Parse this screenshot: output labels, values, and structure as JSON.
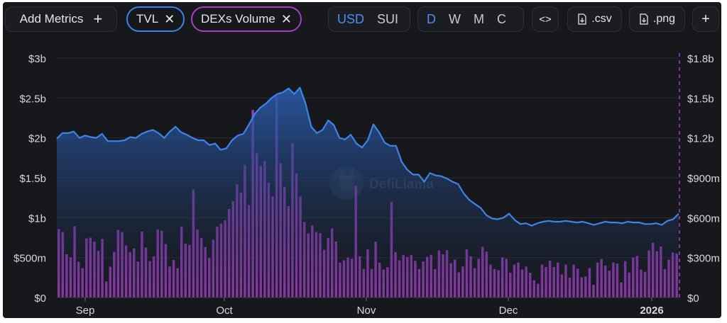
{
  "toolbar": {
    "add_metrics_label": "Add Metrics",
    "add_icon": "+",
    "metric_pills": [
      {
        "label": "TVL",
        "color": "#3d84e8"
      },
      {
        "label": "DEXs Volume",
        "color": "#a43fc2"
      }
    ],
    "remove_icon": "✕",
    "denominations": [
      "USD",
      "SUI"
    ],
    "active_denomination": "USD",
    "periods": [
      "D",
      "W",
      "M",
      "C"
    ],
    "active_period": "D",
    "embed_label": "<>",
    "csv_label": ".csv",
    "png_label": ".png",
    "more_label": "+"
  },
  "watermark": "DefiLlama",
  "chart_data": {
    "type": "bar",
    "x_tick_labels": [
      "Sep",
      "Oct",
      "Nov",
      "Dec",
      "2026"
    ],
    "left_axis_ticks": [
      "$0",
      "$500m",
      "$1b",
      "$1.5b",
      "$2b",
      "$2.5b",
      "$3b"
    ],
    "right_axis_ticks": [
      "$0",
      "$300m",
      "$600m",
      "$900m",
      "$1.2b",
      "$1.5b",
      "$1.8b"
    ],
    "left_ylim": [
      0,
      3000000000
    ],
    "right_ylim": [
      0,
      1800000000
    ],
    "legend_placement": "none",
    "grid": true,
    "series": [
      {
        "name": "TVL",
        "type": "area",
        "axis": "left",
        "color": "#3d84e8",
        "values": [
          1990000000,
          2060000000,
          2060000000,
          2080000000,
          2000000000,
          2030000000,
          2010000000,
          2000000000,
          2050000000,
          1960000000,
          1960000000,
          1960000000,
          1970000000,
          2010000000,
          2000000000,
          2050000000,
          2080000000,
          2100000000,
          2060000000,
          2000000000,
          2080000000,
          2140000000,
          2070000000,
          2040000000,
          2000000000,
          1970000000,
          1970000000,
          1910000000,
          1930000000,
          1850000000,
          1870000000,
          1970000000,
          2030000000,
          2050000000,
          2170000000,
          2300000000,
          2380000000,
          2430000000,
          2500000000,
          2550000000,
          2570000000,
          2620000000,
          2550000000,
          2630000000,
          2430000000,
          2140000000,
          2060000000,
          2100000000,
          2220000000,
          2160000000,
          2000000000,
          1980000000,
          2040000000,
          1930000000,
          1880000000,
          1970000000,
          2170000000,
          2070000000,
          1940000000,
          1900000000,
          1900000000,
          1700000000,
          1600000000,
          1540000000,
          1540000000,
          1450000000,
          1560000000,
          1530000000,
          1520000000,
          1490000000,
          1450000000,
          1420000000,
          1300000000,
          1220000000,
          1170000000,
          1120000000,
          1030000000,
          990000000,
          980000000,
          1000000000,
          1050000000,
          970000000,
          920000000,
          930000000,
          900000000,
          930000000,
          950000000,
          960000000,
          950000000,
          950000000,
          960000000,
          950000000,
          940000000,
          950000000,
          930000000,
          910000000,
          930000000,
          950000000,
          940000000,
          940000000,
          930000000,
          950000000,
          940000000,
          940000000,
          920000000,
          920000000,
          930000000,
          910000000,
          960000000,
          980000000,
          1050000000
        ]
      },
      {
        "name": "DEXs Volume",
        "type": "bar",
        "axis": "right",
        "color": "#a43fc2",
        "values": [
          515000000,
          492000000,
          325000000,
          302000000,
          536000000,
          269000000,
          220000000,
          444000000,
          450000000,
          420000000,
          350000000,
          441000000,
          120000000,
          232000000,
          343000000,
          508000000,
          492000000,
          392000000,
          340000000,
          369000000,
          270000000,
          495000000,
          376000000,
          274000000,
          310000000,
          512000000,
          502000000,
          402000000,
          233000000,
          282000000,
          221000000,
          533000000,
          405000000,
          396000000,
          812000000,
          510000000,
          448000000,
          380000000,
          297000000,
          435000000,
          533000000,
          556000000,
          580000000,
          666000000,
          725000000,
          850000000,
          790000000,
          997000000,
          695000000,
          1410000000,
          1084000000,
          990000000,
          1026000000,
          864000000,
          760000000,
          1510000000,
          1010000000,
          832000000,
          688000000,
          1160000000,
          934000000,
          760000000,
          568000000,
          482000000,
          542000000,
          492000000,
          484000000,
          358000000,
          448000000,
          520000000,
          421000000,
          263000000,
          280000000,
          300000000,
          291000000,
          840000000,
          310000000,
          215000000,
          363000000,
          215000000,
          420000000,
          262000000,
          210000000,
          228000000,
          720000000,
          342000000,
          280000000,
          320000000,
          304000000,
          320000000,
          275000000,
          214000000,
          271000000,
          306000000,
          321000000,
          214000000,
          353000000,
          325000000,
          356000000,
          258000000,
          285000000,
          190000000,
          233000000,
          362000000,
          309000000,
          221000000,
          292000000,
          381000000,
          345000000,
          247000000,
          214000000,
          205000000,
          302000000,
          291000000,
          186000000,
          247000000,
          263000000,
          210000000,
          233000000,
          186000000,
          130000000,
          103000000,
          247000000,
          229000000,
          277000000,
          229000000,
          263000000,
          174000000,
          247000000,
          149000000,
          246000000,
          217000000,
          152000000,
          159000000,
          221000000,
          96000000,
          262000000,
          290000000,
          240000000,
          202000000,
          263000000,
          255000000,
          114000000,
          273000000,
          188000000,
          301000000,
          313000000,
          210000000,
          193000000,
          354000000,
          412000000,
          347000000,
          383000000,
          214000000,
          285000000,
          338000000,
          330000000
        ]
      }
    ]
  }
}
